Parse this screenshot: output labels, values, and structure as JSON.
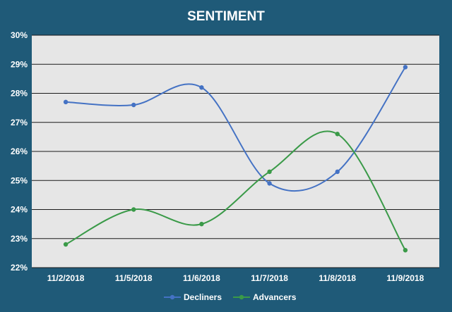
{
  "chart_data": {
    "type": "line",
    "title": "SENTIMENT",
    "categories": [
      "11/2/2018",
      "11/5/2018",
      "11/6/2018",
      "11/7/2018",
      "11/8/2018",
      "11/9/2018"
    ],
    "y_ticks": [
      "22%",
      "23%",
      "24%",
      "25%",
      "26%",
      "27%",
      "28%",
      "29%",
      "30%"
    ],
    "ylim": [
      22,
      30
    ],
    "grid": true,
    "smooth": true,
    "legend_position": "bottom",
    "series": [
      {
        "name": "Decliners",
        "color": "#4472c4",
        "values": [
          27.7,
          27.6,
          28.2,
          24.9,
          25.3,
          28.9
        ]
      },
      {
        "name": "Advancers",
        "color": "#3a9a48",
        "values": [
          22.8,
          24.0,
          23.5,
          25.3,
          26.6,
          22.6
        ]
      }
    ]
  }
}
